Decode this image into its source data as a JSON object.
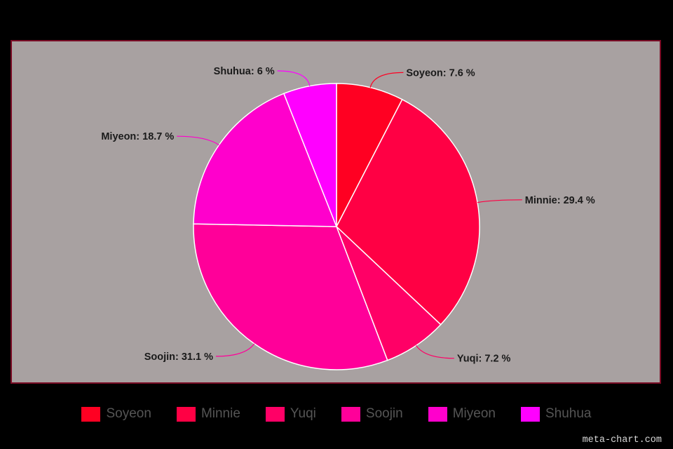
{
  "chart_data": {
    "type": "pie",
    "title": "",
    "slices": [
      {
        "name": "Soyeon",
        "value": 7.6,
        "label": "Soyeon: 7.6 %",
        "color": "#ff0022"
      },
      {
        "name": "Minnie",
        "value": 29.4,
        "label": "Minnie: 29.4 %",
        "color": "#ff0044"
      },
      {
        "name": "Yuqi",
        "value": 7.2,
        "label": "Yuqi: 7.2 %",
        "color": "#ff0066"
      },
      {
        "name": "Soojin",
        "value": 31.1,
        "label": "Soojin: 31.1 %",
        "color": "#ff0099"
      },
      {
        "name": "Miyeon",
        "value": 18.7,
        "label": "Miyeon: 18.7 %",
        "color": "#ff00cc"
      },
      {
        "name": "Shuhua",
        "value": 6,
        "label": "Shuhua: 6 %",
        "color": "#ff00ff"
      }
    ],
    "legend_placement": "bottom"
  },
  "legend": {
    "items": [
      "Soyeon",
      "Minnie",
      "Yuqi",
      "Soojin",
      "Miyeon",
      "Shuhua"
    ]
  },
  "colors": {
    "page_background": "#000000",
    "plot_background": "#a8a1a1",
    "plot_border": "#7a0c25"
  },
  "watermark": "meta-chart.com"
}
